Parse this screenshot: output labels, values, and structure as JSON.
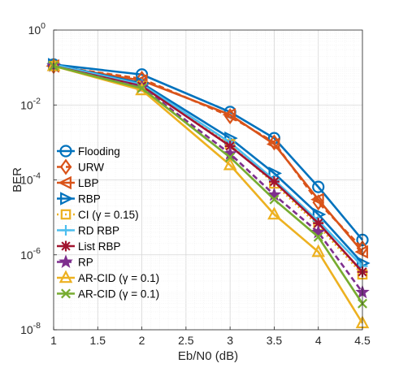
{
  "chart_data": {
    "type": "line",
    "title": "",
    "xlabel": "Eb/N0 (dB)",
    "ylabel": "BER",
    "xlim": [
      1,
      4.5
    ],
    "ylim_exp": [
      -8,
      0
    ],
    "yscale": "log",
    "grid": true,
    "legend_position": "left-bottom",
    "x_ticks": [
      "1",
      "1.5",
      "2",
      "2.5",
      "3",
      "3.5",
      "4",
      "4.5"
    ],
    "y_tick_base": "10",
    "y_ticks": [
      "0",
      "-2",
      "-4",
      "-6",
      "-8"
    ],
    "x": [
      1,
      2,
      3,
      3.5,
      4,
      4.5
    ],
    "series": [
      {
        "name": "Flooding",
        "color": "#0072bd",
        "marker": "circle",
        "dash": "solid",
        "y": [
          0.12,
          0.065,
          0.0065,
          0.0013,
          6.5e-05,
          2.5e-06
        ]
      },
      {
        "name": "URW",
        "color": "#d95319",
        "marker": "diamond",
        "dash": "dashed",
        "y": [
          0.11,
          0.05,
          0.005,
          0.001,
          2.5e-05,
          1.5e-06
        ]
      },
      {
        "name": "LBP",
        "color": "#d95319",
        "marker": "triangle-left",
        "dash": "solid",
        "y": [
          0.11,
          0.045,
          0.0055,
          0.0009,
          3e-05,
          1.2e-06
        ]
      },
      {
        "name": "RBP",
        "color": "#0072bd",
        "marker": "triangle-right",
        "dash": "solid",
        "y": [
          0.12,
          0.038,
          0.0013,
          0.00015,
          1.2e-05,
          6e-07
        ]
      },
      {
        "name": "CI (γ = 0.15)",
        "color": "#edb120",
        "marker": "square",
        "dash": "dotted",
        "y": [
          0.11,
          0.032,
          0.0009,
          8e-05,
          6e-06,
          3e-07
        ]
      },
      {
        "name": "RD RBP",
        "color": "#4dbeee",
        "marker": "plus",
        "dash": "solid",
        "y": [
          0.12,
          0.035,
          0.001,
          0.0001,
          8e-06,
          5e-07
        ]
      },
      {
        "name": "List RBP",
        "color": "#a2142f",
        "marker": "asterisk",
        "dash": "solid",
        "y": [
          0.11,
          0.032,
          0.0008,
          9e-05,
          7e-06,
          3.5e-07
        ]
      },
      {
        "name": "RP",
        "color": "#7e2f8e",
        "marker": "star",
        "dash": "dashed",
        "y": [
          0.11,
          0.03,
          0.0005,
          4e-05,
          4e-06,
          1e-07
        ]
      },
      {
        "name": "AR-CID (γ = 0.1)",
        "color": "#edb120",
        "marker": "triangle-up",
        "dash": "solid",
        "y": [
          0.11,
          0.025,
          0.00025,
          1.2e-05,
          1.2e-06,
          1.5e-08
        ]
      },
      {
        "name": "AR-CID (γ = 0.1)",
        "color": "#77ac30",
        "marker": "x-cross",
        "dash": "solid",
        "y": [
          0.11,
          0.028,
          0.0004,
          3e-05,
          3e-06,
          5e-08
        ]
      }
    ]
  }
}
